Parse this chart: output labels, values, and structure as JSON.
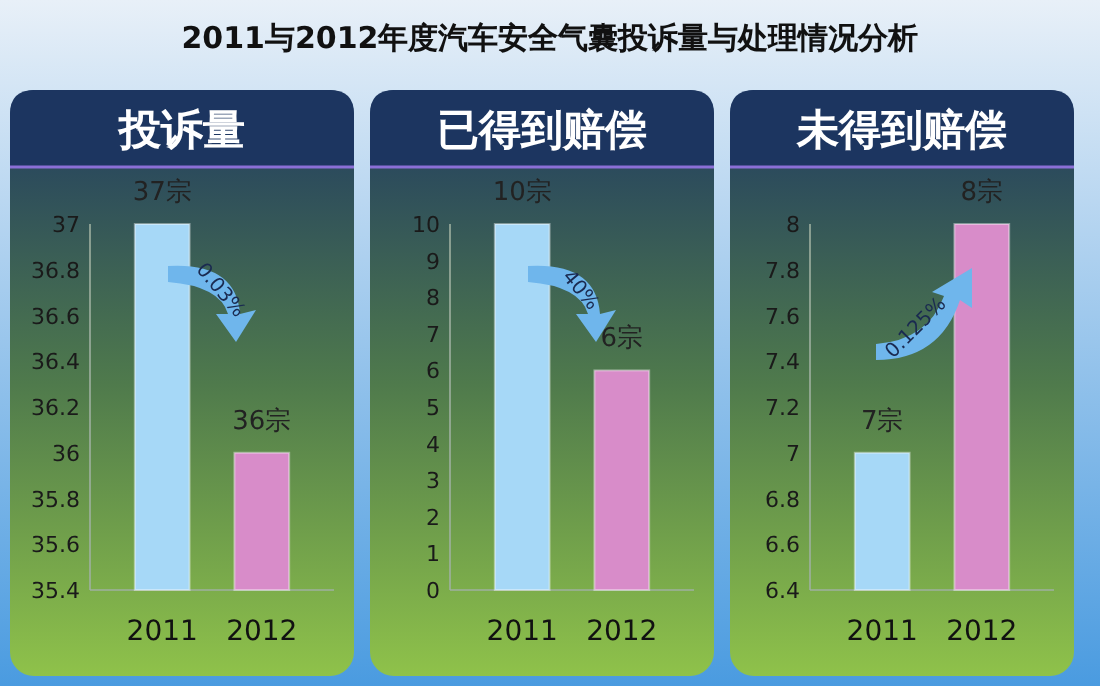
{
  "chart_data": [
    {
      "type": "bar",
      "title": "2011与2012年度汽车安全气囊投诉量与处理情况分析",
      "subtitle": "投诉量",
      "categories": [
        "2011",
        "2012"
      ],
      "values": [
        37,
        36
      ],
      "colors": [
        "#a6d8f7",
        "#d88cc9"
      ],
      "value_labels": [
        "37宗",
        "36宗"
      ],
      "ylim": [
        35.4,
        37
      ],
      "yticks": [
        35.4,
        35.6,
        35.8,
        36,
        36.2,
        36.4,
        36.6,
        36.8,
        37
      ],
      "annotations": [
        "0.03%"
      ]
    },
    {
      "type": "bar",
      "subtitle": "已得到赔偿",
      "categories": [
        "2011",
        "2012"
      ],
      "values": [
        10,
        6
      ],
      "colors": [
        "#a6d8f7",
        "#d88cc9"
      ],
      "value_labels": [
        "10宗",
        "6宗"
      ],
      "ylim": [
        0,
        10
      ],
      "yticks": [
        0,
        1,
        2,
        3,
        4,
        5,
        6,
        7,
        8,
        9,
        10
      ],
      "annotations": [
        "40%"
      ]
    },
    {
      "type": "bar",
      "subtitle": "未得到赔偿",
      "categories": [
        "2011",
        "2012"
      ],
      "values": [
        7,
        8
      ],
      "colors": [
        "#a6d8f7",
        "#d88cc9"
      ],
      "value_labels": [
        "7宗",
        "8宗"
      ],
      "ylim": [
        6.4,
        8
      ],
      "yticks": [
        6.4,
        6.6,
        6.8,
        7,
        7.2,
        7.4,
        7.6,
        7.8,
        8
      ],
      "annotations": [
        "0.125%"
      ]
    }
  ]
}
